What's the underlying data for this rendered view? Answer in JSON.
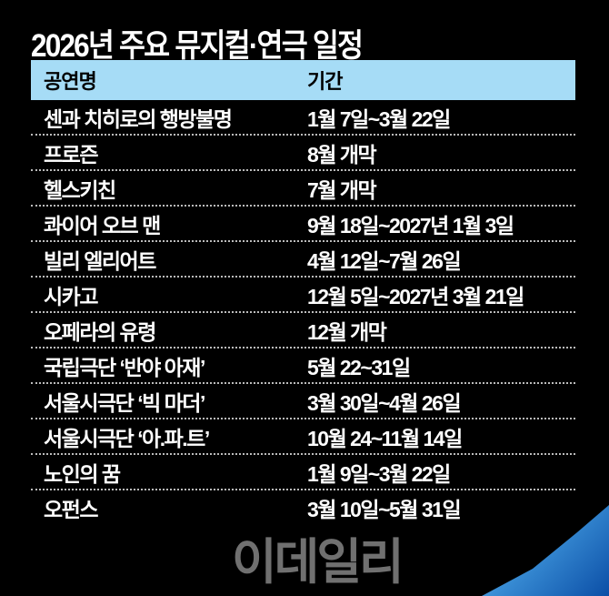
{
  "title": "2026년 주요 뮤지컬·연극 일정",
  "columns": [
    "공연명",
    "기간"
  ],
  "rows": [
    {
      "name": "센과 치히로의 행방불명",
      "period": "1월 7일~3월 22일"
    },
    {
      "name": "프로즌",
      "period": "8월 개막"
    },
    {
      "name": "헬스키친",
      "period": "7월 개막"
    },
    {
      "name": "콰이어 오브 맨",
      "period": "9월 18일~2027년 1월 3일"
    },
    {
      "name": "빌리 엘리어트",
      "period": "4월 12일~7월 26일"
    },
    {
      "name": "시카고",
      "period": "12월 5일~2027년 3월 21일"
    },
    {
      "name": "오페라의 유령",
      "period": "12월 개막"
    },
    {
      "name": "국립극단 ‘반야 아재’",
      "period": "5월 22~31일"
    },
    {
      "name": "서울시극단 ‘빅 마더’",
      "period": "3월 30일~4월 26일"
    },
    {
      "name": "서울시극단 ‘아.파.트’",
      "period": "10월 24~11월 14일"
    },
    {
      "name": "노인의 꿈",
      "period": "1월 9일~3월 22일"
    },
    {
      "name": "오펀스",
      "period": "3월 10일~5월 31일"
    }
  ],
  "watermark": "이데일리",
  "colors": {
    "header_bg": "#a6dcf6",
    "background": "#000000"
  }
}
